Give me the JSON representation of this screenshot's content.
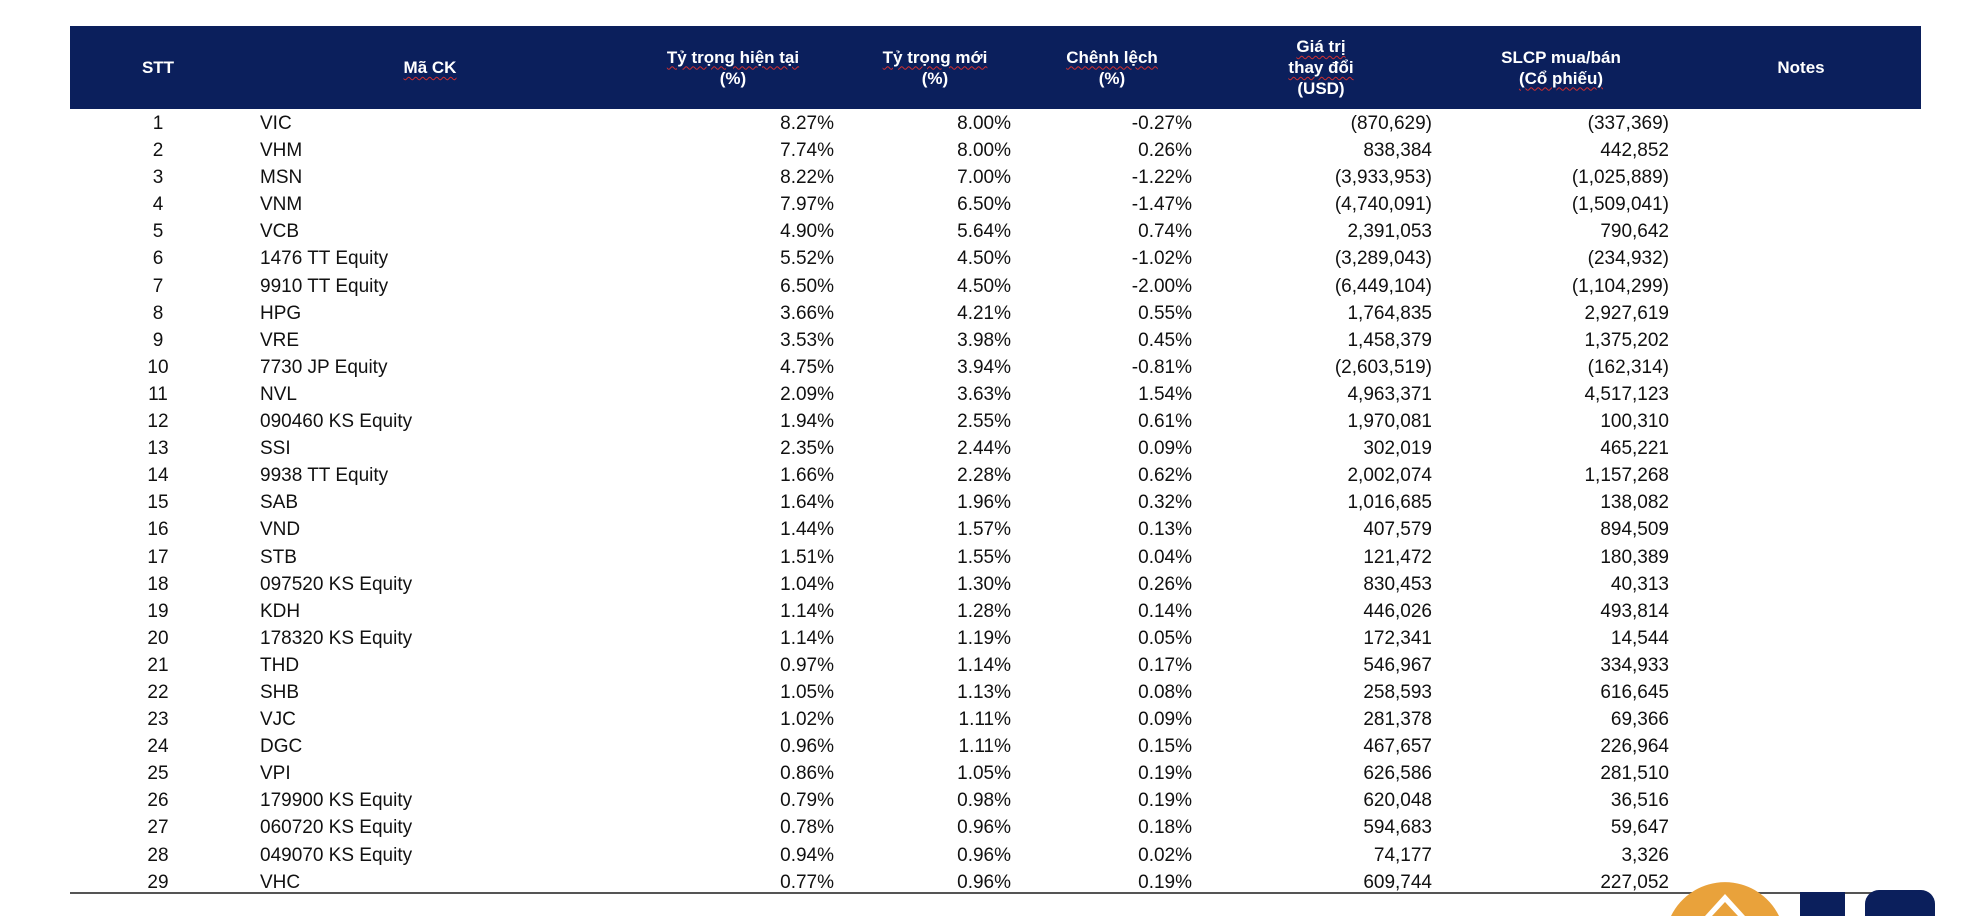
{
  "header": {
    "stt": "STT",
    "ma_ck": "Mã CK",
    "ty_trong_hien_tai": [
      "Tỷ trọng hiện tại",
      "(%)"
    ],
    "ty_trong_moi": [
      "Tỷ trọng mới",
      "(%)"
    ],
    "chenh_lech": [
      "Chênh lệch",
      "(%)"
    ],
    "gia_tri": [
      "Giá trị",
      "thay đổi",
      "(USD)"
    ],
    "slcp": [
      "SLCP mua/bán",
      "(Cổ phiếu)"
    ],
    "notes": "Notes"
  },
  "rows": [
    [
      "1",
      "VIC",
      "8.27%",
      "8.00%",
      "-0.27%",
      "(870,629)",
      "(337,369)"
    ],
    [
      "2",
      "VHM",
      "7.74%",
      "8.00%",
      "0.26%",
      "838,384",
      "442,852"
    ],
    [
      "3",
      "MSN",
      "8.22%",
      "7.00%",
      "-1.22%",
      "(3,933,953)",
      "(1,025,889)"
    ],
    [
      "4",
      "VNM",
      "7.97%",
      "6.50%",
      "-1.47%",
      "(4,740,091)",
      "(1,509,041)"
    ],
    [
      "5",
      "VCB",
      "4.90%",
      "5.64%",
      "0.74%",
      "2,391,053",
      "790,642"
    ],
    [
      "6",
      "1476 TT Equity",
      "5.52%",
      "4.50%",
      "-1.02%",
      "(3,289,043)",
      "(234,932)"
    ],
    [
      "7",
      "9910 TT Equity",
      "6.50%",
      "4.50%",
      "-2.00%",
      "(6,449,104)",
      "(1,104,299)"
    ],
    [
      "8",
      "HPG",
      "3.66%",
      "4.21%",
      "0.55%",
      "1,764,835",
      "2,927,619"
    ],
    [
      "9",
      "VRE",
      "3.53%",
      "3.98%",
      "0.45%",
      "1,458,379",
      "1,375,202"
    ],
    [
      "10",
      "7730 JP Equity",
      "4.75%",
      "3.94%",
      "-0.81%",
      "(2,603,519)",
      "(162,314)"
    ],
    [
      "11",
      "NVL",
      "2.09%",
      "3.63%",
      "1.54%",
      "4,963,371",
      "4,517,123"
    ],
    [
      "12",
      "090460 KS Equity",
      "1.94%",
      "2.55%",
      "0.61%",
      "1,970,081",
      "100,310"
    ],
    [
      "13",
      "SSI",
      "2.35%",
      "2.44%",
      "0.09%",
      "302,019",
      "465,221"
    ],
    [
      "14",
      "9938 TT Equity",
      "1.66%",
      "2.28%",
      "0.62%",
      "2,002,074",
      "1,157,268"
    ],
    [
      "15",
      "SAB",
      "1.64%",
      "1.96%",
      "0.32%",
      "1,016,685",
      "138,082"
    ],
    [
      "16",
      "VND",
      "1.44%",
      "1.57%",
      "0.13%",
      "407,579",
      "894,509"
    ],
    [
      "17",
      "STB",
      "1.51%",
      "1.55%",
      "0.04%",
      "121,472",
      "180,389"
    ],
    [
      "18",
      "097520 KS Equity",
      "1.04%",
      "1.30%",
      "0.26%",
      "830,453",
      "40,313"
    ],
    [
      "19",
      "KDH",
      "1.14%",
      "1.28%",
      "0.14%",
      "446,026",
      "493,814"
    ],
    [
      "20",
      "178320 KS Equity",
      "1.14%",
      "1.19%",
      "0.05%",
      "172,341",
      "14,544"
    ],
    [
      "21",
      "THD",
      "0.97%",
      "1.14%",
      "0.17%",
      "546,967",
      "334,933"
    ],
    [
      "22",
      "SHB",
      "1.05%",
      "1.13%",
      "0.08%",
      "258,593",
      "616,645"
    ],
    [
      "23",
      "VJC",
      "1.02%",
      "1.11%",
      "0.09%",
      "281,378",
      "69,366"
    ],
    [
      "24",
      "DGC",
      "0.96%",
      "1.11%",
      "0.15%",
      "467,657",
      "226,964"
    ],
    [
      "25",
      "VPI",
      "0.86%",
      "1.05%",
      "0.19%",
      "626,586",
      "281,510"
    ],
    [
      "26",
      "179900 KS Equity",
      "0.79%",
      "0.98%",
      "0.19%",
      "620,048",
      "36,516"
    ],
    [
      "27",
      "060720 KS Equity",
      "0.78%",
      "0.96%",
      "0.18%",
      "594,683",
      "59,647"
    ],
    [
      "28",
      "049070 KS Equity",
      "0.94%",
      "0.96%",
      "0.02%",
      "74,177",
      "3,326"
    ],
    [
      "29",
      "VHC",
      "0.77%",
      "0.96%",
      "0.19%",
      "609,744",
      "227,052"
    ]
  ],
  "colors": {
    "header_bg": "#0b1f5c",
    "logo_orange": "#e9a23b",
    "logo_blue": "#0b1f5c"
  }
}
